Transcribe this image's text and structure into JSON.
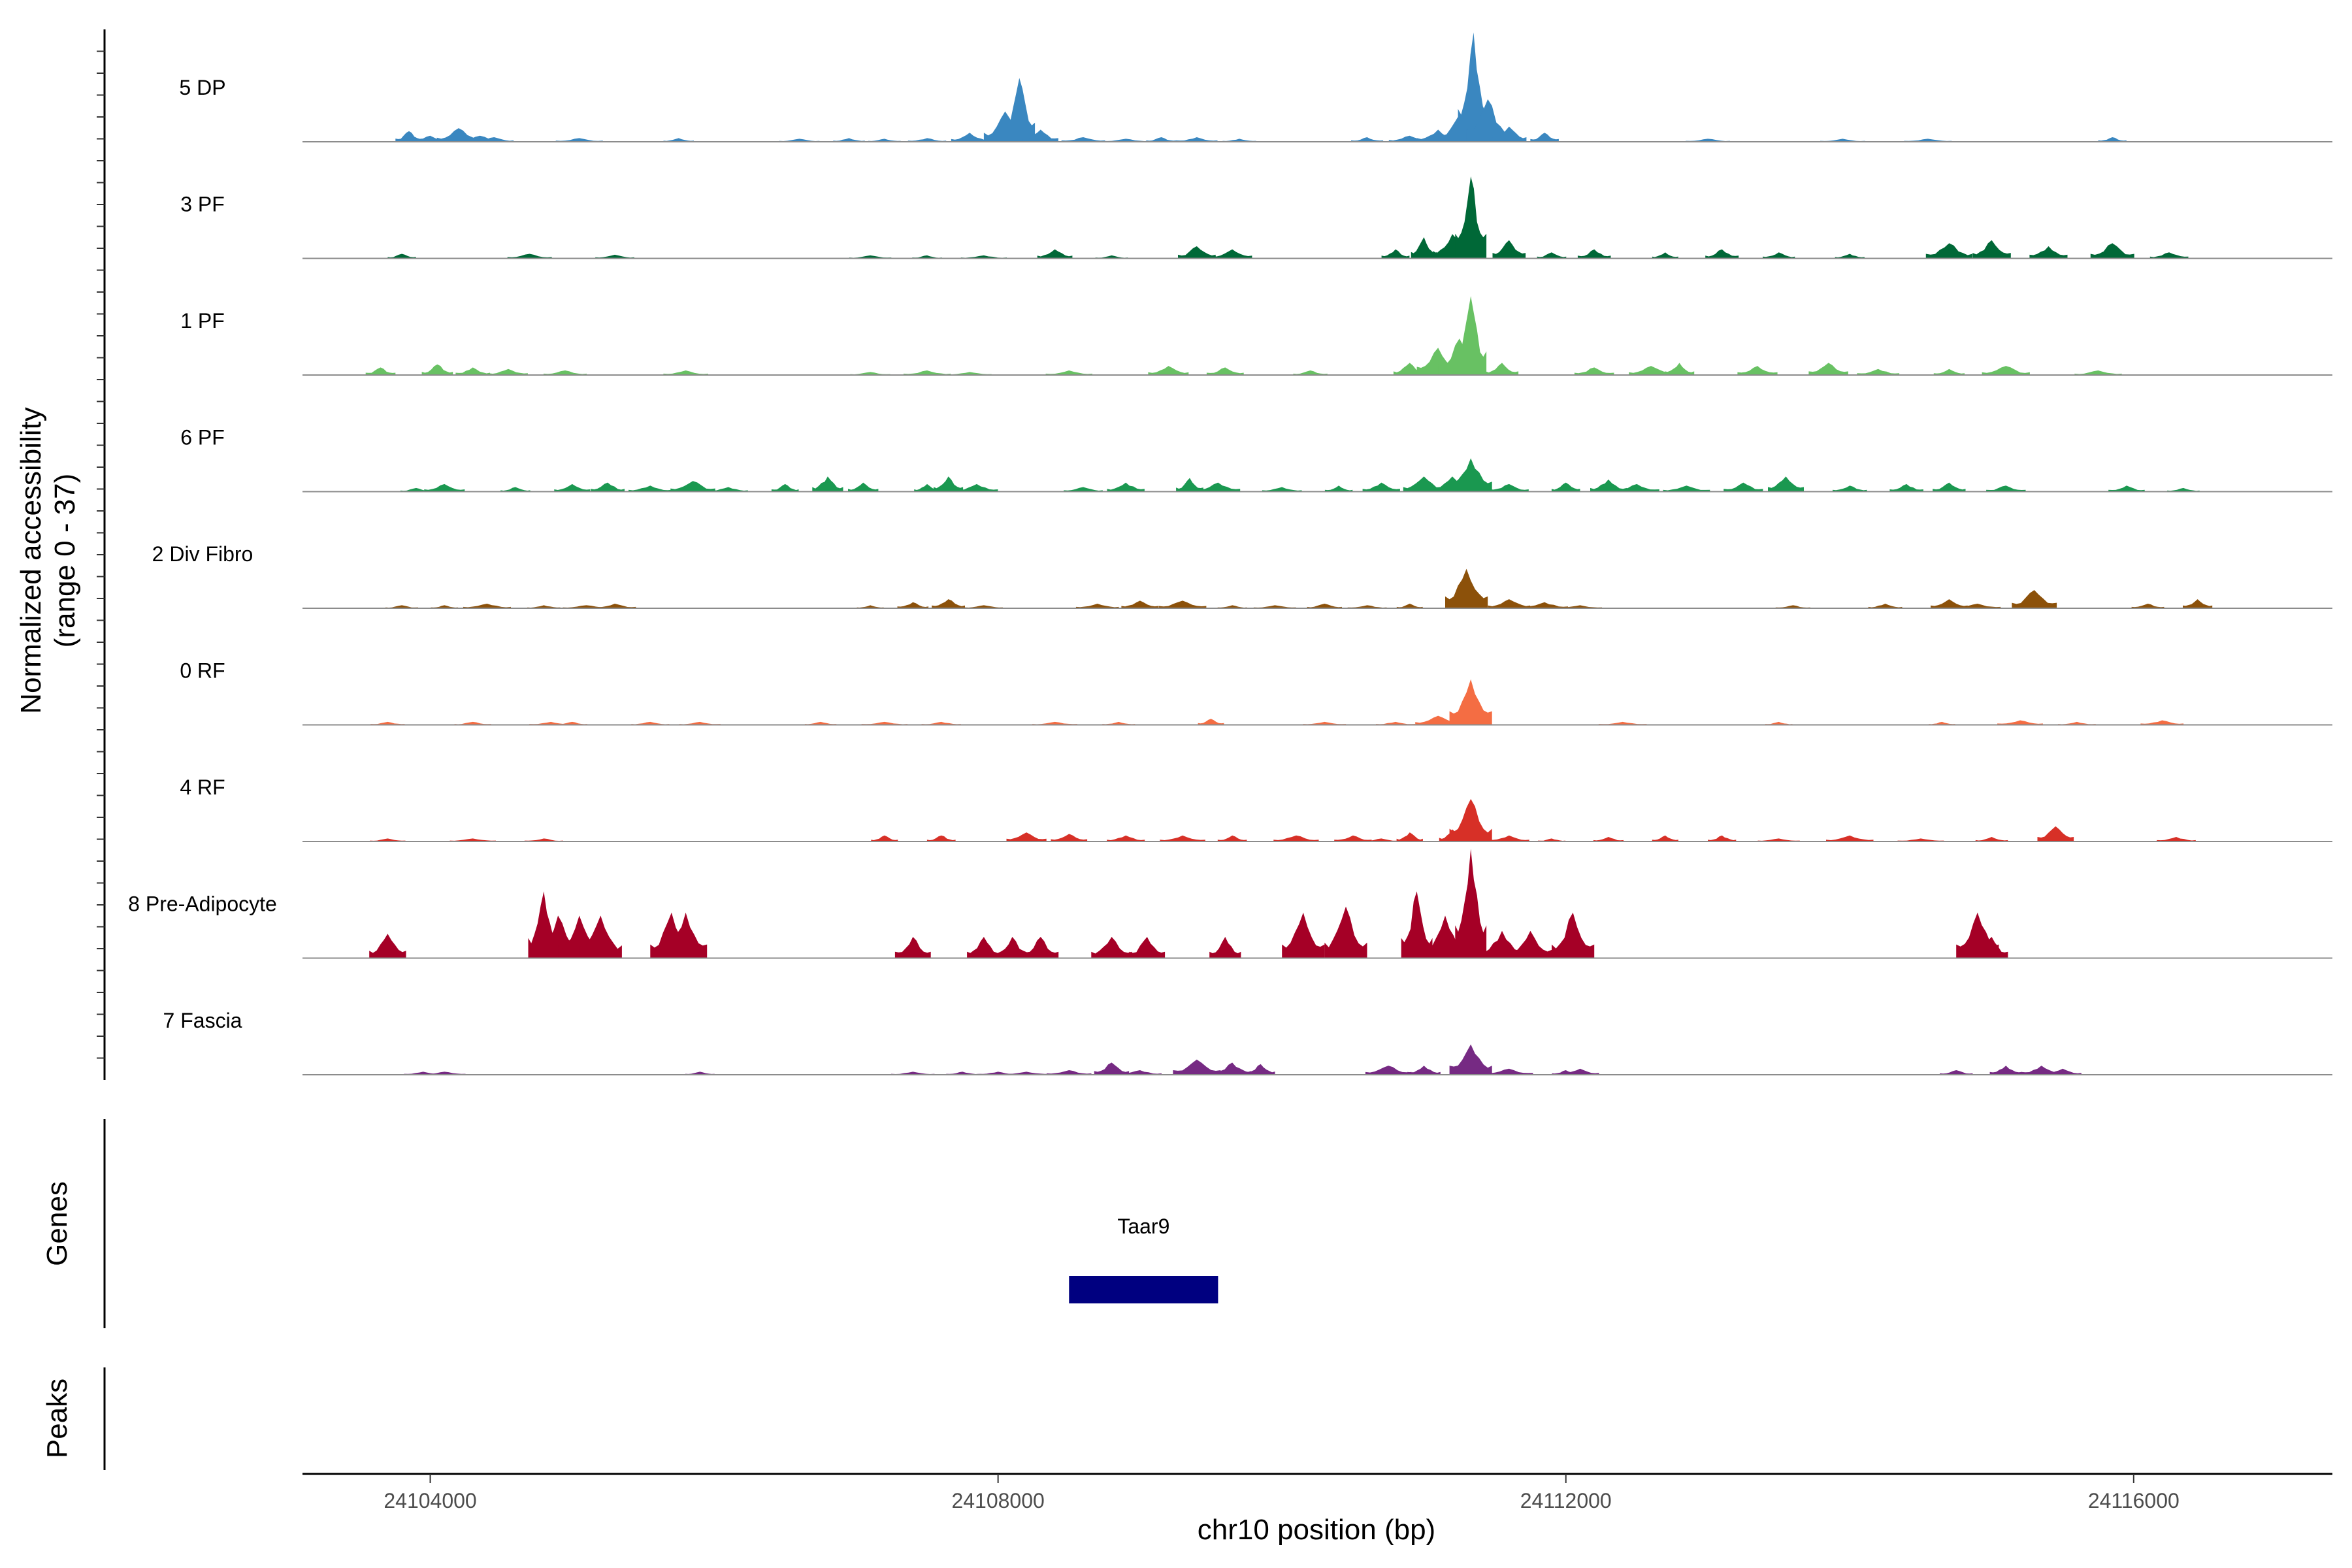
{
  "chart_data": {
    "type": "area",
    "chromosome": "chr10",
    "xlabel": "chr10 position (bp)",
    "ylabel": "Normalized accessibility",
    "ylabel_range": "(range 0 - 37)",
    "ylim": [
      0,
      37
    ],
    "xlim": [
      24103100,
      24117400
    ],
    "xticks": [
      {
        "value": 24104000,
        "label": "24104000"
      },
      {
        "value": 24108000,
        "label": "24108000"
      },
      {
        "value": 24112000,
        "label": "24112000"
      },
      {
        "value": 24116000,
        "label": "24116000"
      }
    ],
    "grid": false,
    "series": [
      {
        "name": "5 DP",
        "color": "#3a87c0",
        "peaks": [
          [
            24103850,
            3.5
          ],
          [
            24104000,
            2
          ],
          [
            24104200,
            4.5
          ],
          [
            24104350,
            2
          ],
          [
            24104450,
            1.5
          ],
          [
            24105050,
            1.2
          ],
          [
            24105750,
            1.2
          ],
          [
            24106600,
            1
          ],
          [
            24106950,
            1.2
          ],
          [
            24107200,
            1
          ],
          [
            24107500,
            1.2
          ],
          [
            24107800,
            3
          ],
          [
            24108050,
            10
          ],
          [
            24108150,
            21
          ],
          [
            24108300,
            4
          ],
          [
            24108600,
            1.5
          ],
          [
            24108900,
            1
          ],
          [
            24109150,
            1.5
          ],
          [
            24109400,
            1.5
          ],
          [
            24109700,
            1
          ],
          [
            24110600,
            1.5
          ],
          [
            24110900,
            2
          ],
          [
            24111100,
            4
          ],
          [
            24111250,
            9
          ],
          [
            24111350,
            36
          ],
          [
            24111450,
            14
          ],
          [
            24111600,
            5
          ],
          [
            24111850,
            3
          ],
          [
            24113000,
            1
          ],
          [
            24113950,
            1
          ],
          [
            24114550,
            1
          ],
          [
            24115850,
            1.5
          ]
        ]
      },
      {
        "name": "3 PF",
        "color": "#006837",
        "peaks": [
          [
            24103800,
            1.5
          ],
          [
            24104700,
            1.5
          ],
          [
            24105300,
            1.2
          ],
          [
            24107100,
            1
          ],
          [
            24107500,
            1
          ],
          [
            24107900,
            1
          ],
          [
            24108400,
            3
          ],
          [
            24108800,
            1
          ],
          [
            24109400,
            4
          ],
          [
            24109650,
            3
          ],
          [
            24110800,
            3
          ],
          [
            24111000,
            7
          ],
          [
            24111200,
            8
          ],
          [
            24111330,
            27
          ],
          [
            24111600,
            6
          ],
          [
            24111900,
            2
          ],
          [
            24112200,
            3
          ],
          [
            24112700,
            2
          ],
          [
            24113100,
            3
          ],
          [
            24113500,
            2
          ],
          [
            24114000,
            1.5
          ],
          [
            24114700,
            5
          ],
          [
            24115000,
            6
          ],
          [
            24115400,
            4
          ],
          [
            24115850,
            5
          ],
          [
            24116250,
            2
          ]
        ]
      },
      {
        "name": "1 PF",
        "color": "#68c163",
        "peaks": [
          [
            24103650,
            2.5
          ],
          [
            24104050,
            3.5
          ],
          [
            24104300,
            2.5
          ],
          [
            24104550,
            2
          ],
          [
            24104950,
            1.5
          ],
          [
            24105800,
            1.5
          ],
          [
            24107100,
            1
          ],
          [
            24107500,
            1.5
          ],
          [
            24107800,
            1
          ],
          [
            24108500,
            1.5
          ],
          [
            24109200,
            3
          ],
          [
            24109600,
            2.5
          ],
          [
            24110200,
            1.5
          ],
          [
            24110900,
            4
          ],
          [
            24111100,
            9
          ],
          [
            24111250,
            12
          ],
          [
            24111330,
            26
          ],
          [
            24111550,
            4
          ],
          [
            24112200,
            2.5
          ],
          [
            24112600,
            3
          ],
          [
            24112800,
            4
          ],
          [
            24113350,
            3
          ],
          [
            24113850,
            4
          ],
          [
            24114200,
            2
          ],
          [
            24114700,
            2
          ],
          [
            24115100,
            3
          ],
          [
            24115750,
            1.5
          ]
        ]
      },
      {
        "name": "6 PF",
        "color": "#1a9850",
        "peaks": [
          [
            24103900,
            1.2
          ],
          [
            24104100,
            2.5
          ],
          [
            24104600,
            1.5
          ],
          [
            24105000,
            2.5
          ],
          [
            24105250,
            3
          ],
          [
            24105550,
            2
          ],
          [
            24105850,
            3.5
          ],
          [
            24106100,
            1.5
          ],
          [
            24106500,
            2.5
          ],
          [
            24106800,
            5
          ],
          [
            24107050,
            3
          ],
          [
            24107500,
            2.5
          ],
          [
            24107650,
            5
          ],
          [
            24107850,
            2.5
          ],
          [
            24108600,
            1.5
          ],
          [
            24108900,
            3
          ],
          [
            24109350,
            4.5
          ],
          [
            24109550,
            3
          ],
          [
            24110000,
            1.5
          ],
          [
            24110400,
            2
          ],
          [
            24110700,
            3
          ],
          [
            24111000,
            5
          ],
          [
            24111200,
            5
          ],
          [
            24111330,
            11
          ],
          [
            24111600,
            2.5
          ],
          [
            24112000,
            3
          ],
          [
            24112300,
            4
          ],
          [
            24112500,
            2.5
          ],
          [
            24112850,
            2
          ],
          [
            24113250,
            3
          ],
          [
            24113550,
            5
          ],
          [
            24114000,
            2
          ],
          [
            24114400,
            2.5
          ],
          [
            24114700,
            3
          ],
          [
            24115100,
            2
          ],
          [
            24115950,
            2
          ],
          [
            24116350,
            1.2
          ]
        ]
      },
      {
        "name": "2 Div Fibro",
        "color": "#8c510a",
        "peaks": [
          [
            24103800,
            1
          ],
          [
            24104100,
            1
          ],
          [
            24104400,
            1.5
          ],
          [
            24104800,
            1
          ],
          [
            24105100,
            1
          ],
          [
            24105300,
            1.5
          ],
          [
            24107100,
            1
          ],
          [
            24107400,
            2
          ],
          [
            24107650,
            3
          ],
          [
            24107900,
            1
          ],
          [
            24108700,
            1.5
          ],
          [
            24109000,
            2.5
          ],
          [
            24109300,
            2.5
          ],
          [
            24109650,
            1
          ],
          [
            24109950,
            1
          ],
          [
            24110300,
            1.5
          ],
          [
            24110600,
            1
          ],
          [
            24110900,
            1.5
          ],
          [
            24111300,
            13
          ],
          [
            24111600,
            3
          ],
          [
            24111850,
            2
          ],
          [
            24112100,
            1
          ],
          [
            24113600,
            1
          ],
          [
            24114250,
            1.5
          ],
          [
            24114700,
            3
          ],
          [
            24114900,
            1.5
          ],
          [
            24115300,
            6
          ],
          [
            24116100,
            1.5
          ],
          [
            24116450,
            3
          ]
        ]
      },
      {
        "name": "0 RF",
        "color": "#f46d43",
        "peaks": [
          [
            24103700,
            1
          ],
          [
            24104300,
            1
          ],
          [
            24104850,
            1
          ],
          [
            24105000,
            1
          ],
          [
            24105550,
            1
          ],
          [
            24105900,
            1
          ],
          [
            24106750,
            1
          ],
          [
            24107200,
            1
          ],
          [
            24107600,
            1
          ],
          [
            24108400,
            1
          ],
          [
            24108850,
            1
          ],
          [
            24109500,
            2
          ],
          [
            24110300,
            1
          ],
          [
            24110800,
            1
          ],
          [
            24111100,
            3
          ],
          [
            24111330,
            15
          ],
          [
            24112400,
            1
          ],
          [
            24113500,
            1
          ],
          [
            24114650,
            1
          ],
          [
            24115200,
            1.5
          ],
          [
            24115600,
            1
          ],
          [
            24116200,
            1.5
          ]
        ]
      },
      {
        "name": "4 RF",
        "color": "#d73027",
        "peaks": [
          [
            24103700,
            1
          ],
          [
            24104300,
            1
          ],
          [
            24104800,
            1
          ],
          [
            24107200,
            2
          ],
          [
            24107600,
            2
          ],
          [
            24108200,
            3
          ],
          [
            24108500,
            2.5
          ],
          [
            24108900,
            2
          ],
          [
            24109300,
            2
          ],
          [
            24109650,
            2
          ],
          [
            24110100,
            2
          ],
          [
            24110500,
            2
          ],
          [
            24110700,
            1
          ],
          [
            24110900,
            3
          ],
          [
            24111200,
            4
          ],
          [
            24111330,
            14
          ],
          [
            24111600,
            2
          ],
          [
            24111900,
            1
          ],
          [
            24112300,
            1.5
          ],
          [
            24112700,
            2
          ],
          [
            24113100,
            2
          ],
          [
            24113500,
            1
          ],
          [
            24114000,
            2
          ],
          [
            24114500,
            1
          ],
          [
            24115000,
            1.5
          ],
          [
            24115450,
            5
          ],
          [
            24116300,
            1.5
          ]
        ]
      },
      {
        "name": "8 Pre-Adipocyte",
        "color": "#a50026",
        "peaks": [
          [
            24103700,
            8
          ],
          [
            24104800,
            22
          ],
          [
            24104900,
            14
          ],
          [
            24105050,
            14
          ],
          [
            24105200,
            14
          ],
          [
            24105700,
            15
          ],
          [
            24105800,
            15
          ],
          [
            24107400,
            7
          ],
          [
            24107900,
            7
          ],
          [
            24108100,
            7
          ],
          [
            24108300,
            7
          ],
          [
            24108800,
            7
          ],
          [
            24109050,
            7
          ],
          [
            24109600,
            7
          ],
          [
            24110150,
            15
          ],
          [
            24110450,
            17
          ],
          [
            24110950,
            22
          ],
          [
            24111150,
            14
          ],
          [
            24111330,
            36
          ],
          [
            24111550,
            9
          ],
          [
            24111750,
            9
          ],
          [
            24112050,
            15
          ],
          [
            24114900,
            15
          ],
          [
            24115000,
            7
          ]
        ]
      },
      {
        "name": "7 Fascia",
        "color": "#762a83",
        "peaks": [
          [
            24103950,
            1
          ],
          [
            24104100,
            1
          ],
          [
            24105900,
            1
          ],
          [
            24107400,
            1
          ],
          [
            24107750,
            1
          ],
          [
            24108000,
            1
          ],
          [
            24108200,
            1
          ],
          [
            24108500,
            1.5
          ],
          [
            24108800,
            4
          ],
          [
            24109000,
            1.5
          ],
          [
            24109400,
            5
          ],
          [
            24109650,
            4
          ],
          [
            24109850,
            3.5
          ],
          [
            24110750,
            3
          ],
          [
            24111000,
            3
          ],
          [
            24111330,
            10
          ],
          [
            24111600,
            2
          ],
          [
            24112000,
            1.5
          ],
          [
            24112100,
            2
          ],
          [
            24114750,
            1.5
          ],
          [
            24115100,
            3
          ],
          [
            24115350,
            3
          ],
          [
            24115500,
            2
          ]
        ]
      }
    ],
    "genes": {
      "title": "Genes",
      "items": [
        {
          "name": "Taar9",
          "start": 24108500,
          "end": 24109550,
          "color": "#000080"
        }
      ]
    },
    "peaks_track": {
      "title": "Peaks",
      "items": []
    }
  }
}
